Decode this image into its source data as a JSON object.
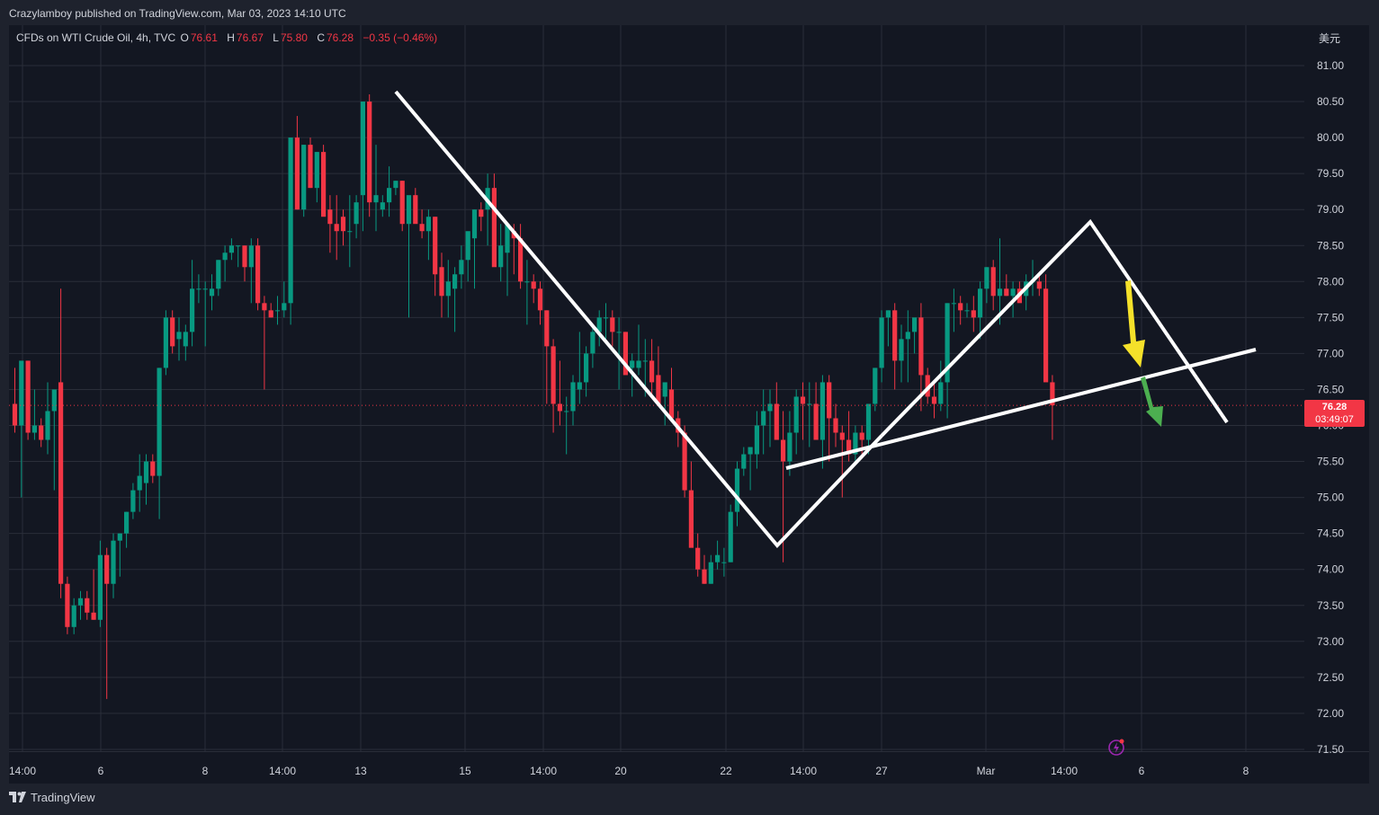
{
  "header": {
    "publisher": "Crazylamboy published on TradingView.com, Mar 03, 2023 14:10 UTC"
  },
  "legend": {
    "symbol": "CFDs on WTI Crude Oil, 4h, TVC",
    "o_label": "O",
    "o": "76.61",
    "h_label": "H",
    "h": "76.67",
    "l_label": "L",
    "l": "75.80",
    "c_label": "C",
    "c": "76.28",
    "change": "−0.35 (−0.46%)"
  },
  "currency": "美元",
  "price_badge": {
    "price": "76.28",
    "countdown": "03:49:07"
  },
  "footer": {
    "brand": "TradingView"
  },
  "colors": {
    "up": "#089981",
    "down": "#f23645",
    "bg": "#131722",
    "frame": "#1e222d",
    "grid": "#2a2e39",
    "annot": "#ffffff",
    "yellow_arrow": "#f5e12a",
    "green_arrow": "#4caf50"
  },
  "icons": [
    "tradingview-logo-icon",
    "lightning-icon"
  ],
  "chart_data": {
    "type": "candlestick",
    "title": "CFDs on WTI Crude Oil, 4h, TVC",
    "ylim": [
      71.35,
      81.45
    ],
    "y_ticks": [
      "81.00",
      "80.50",
      "80.00",
      "79.50",
      "79.00",
      "78.50",
      "78.00",
      "77.50",
      "77.00",
      "76.50",
      "76.00",
      "75.50",
      "75.00",
      "74.50",
      "74.00",
      "73.50",
      "73.00",
      "72.50",
      "72.00",
      "71.50"
    ],
    "x_ticks": [
      "14:00",
      "6",
      "8",
      "14:00",
      "13",
      "15",
      "14:00",
      "20",
      "22",
      "14:00",
      "27",
      "Mar",
      "14:00",
      "6",
      "8"
    ],
    "last_price": 76.28,
    "candles_ohlc": [
      [
        76.3,
        76.8,
        75.9,
        76.0
      ],
      [
        76.0,
        76.7,
        75.0,
        76.9
      ],
      [
        76.9,
        76.9,
        75.8,
        75.9
      ],
      [
        75.9,
        76.5,
        75.8,
        76.0
      ],
      [
        76.0,
        76.1,
        75.7,
        75.8
      ],
      [
        75.8,
        76.6,
        75.6,
        76.2
      ],
      [
        76.2,
        76.5,
        75.1,
        76.5
      ],
      [
        76.6,
        77.9,
        73.6,
        73.8
      ],
      [
        73.8,
        73.9,
        73.1,
        73.2
      ],
      [
        73.2,
        73.6,
        73.1,
        73.5
      ],
      [
        73.5,
        73.7,
        73.3,
        73.6
      ],
      [
        73.6,
        73.7,
        73.3,
        73.4
      ],
      [
        73.4,
        74.0,
        73.3,
        73.3
      ],
      [
        73.3,
        74.4,
        73.2,
        74.2
      ],
      [
        74.2,
        74.3,
        72.2,
        73.8
      ],
      [
        73.8,
        74.5,
        73.6,
        74.4
      ],
      [
        74.4,
        74.5,
        73.9,
        74.5
      ],
      [
        74.5,
        74.8,
        74.3,
        74.8
      ],
      [
        74.8,
        75.2,
        74.7,
        75.1
      ],
      [
        75.1,
        75.6,
        74.8,
        75.3
      ],
      [
        75.2,
        75.6,
        74.9,
        75.5
      ],
      [
        75.5,
        75.6,
        75.2,
        75.3
      ],
      [
        75.3,
        76.8,
        74.7,
        76.8
      ],
      [
        76.8,
        77.6,
        76.7,
        77.5
      ],
      [
        77.5,
        77.6,
        77.0,
        77.1
      ],
      [
        77.2,
        77.5,
        76.9,
        77.3
      ],
      [
        77.1,
        77.4,
        76.9,
        77.3
      ],
      [
        77.3,
        78.3,
        77.1,
        77.9
      ],
      [
        77.9,
        78.1,
        77.7,
        77.9
      ],
      [
        77.9,
        78.0,
        77.1,
        77.9
      ],
      [
        77.8,
        78.1,
        77.6,
        77.9
      ],
      [
        77.9,
        78.3,
        77.8,
        78.3
      ],
      [
        78.3,
        78.5,
        78.0,
        78.4
      ],
      [
        78.4,
        78.6,
        78.3,
        78.5
      ],
      [
        78.5,
        78.5,
        78.2,
        78.5
      ],
      [
        78.5,
        78.5,
        78.0,
        78.2
      ],
      [
        78.2,
        78.6,
        77.7,
        78.5
      ],
      [
        78.5,
        78.6,
        77.6,
        77.7
      ],
      [
        77.7,
        77.8,
        76.5,
        77.6
      ],
      [
        77.6,
        77.7,
        77.5,
        77.5
      ],
      [
        77.6,
        77.8,
        77.4,
        77.6
      ],
      [
        77.6,
        78.0,
        77.5,
        77.7
      ],
      [
        77.7,
        80.0,
        77.4,
        80.0
      ],
      [
        80.0,
        80.3,
        79.0,
        79.0
      ],
      [
        79.0,
        79.9,
        78.9,
        79.9
      ],
      [
        79.9,
        80.0,
        79.3,
        79.3
      ],
      [
        79.3,
        79.8,
        79.1,
        79.8
      ],
      [
        79.8,
        79.9,
        79.0,
        78.9
      ],
      [
        79.0,
        79.2,
        78.4,
        78.8
      ],
      [
        78.8,
        79.2,
        78.3,
        78.7
      ],
      [
        78.9,
        79.0,
        78.5,
        78.7
      ],
      [
        78.7,
        79.2,
        78.2,
        78.7
      ],
      [
        78.8,
        79.2,
        78.6,
        79.1
      ],
      [
        79.2,
        80.5,
        78.7,
        80.5
      ],
      [
        80.5,
        80.6,
        78.9,
        79.1
      ],
      [
        79.1,
        79.9,
        78.7,
        79.2
      ],
      [
        79.0,
        79.2,
        78.9,
        79.1
      ],
      [
        79.1,
        79.6,
        78.9,
        79.3
      ],
      [
        79.3,
        79.4,
        79.2,
        79.4
      ],
      [
        79.4,
        79.4,
        78.7,
        78.8
      ],
      [
        78.8,
        79.1,
        77.5,
        79.2
      ],
      [
        79.2,
        79.3,
        78.9,
        78.8
      ],
      [
        78.8,
        79.0,
        78.6,
        78.7
      ],
      [
        78.7,
        79.0,
        78.3,
        78.9
      ],
      [
        78.9,
        78.9,
        77.8,
        78.1
      ],
      [
        78.2,
        78.4,
        77.5,
        77.8
      ],
      [
        77.8,
        78.3,
        77.5,
        78.0
      ],
      [
        77.9,
        78.2,
        77.3,
        78.1
      ],
      [
        78.1,
        78.5,
        77.9,
        78.3
      ],
      [
        78.3,
        78.5,
        78.0,
        78.7
      ],
      [
        78.6,
        79.0,
        77.9,
        79.0
      ],
      [
        79.0,
        79.1,
        78.7,
        78.9
      ],
      [
        79.0,
        79.5,
        78.5,
        79.3
      ],
      [
        79.3,
        79.5,
        78.4,
        78.2
      ],
      [
        78.2,
        78.8,
        78.0,
        78.5
      ],
      [
        78.4,
        78.8,
        77.8,
        78.8
      ],
      [
        78.7,
        78.8,
        78.1,
        78.6
      ],
      [
        78.6,
        78.8,
        77.9,
        78.0
      ],
      [
        78.0,
        78.3,
        77.4,
        78.0
      ],
      [
        78.0,
        78.1,
        77.7,
        77.9
      ],
      [
        77.9,
        78.0,
        77.4,
        77.6
      ],
      [
        77.6,
        77.6,
        76.3,
        77.1
      ],
      [
        77.1,
        77.2,
        75.9,
        76.3
      ],
      [
        76.3,
        76.9,
        76.0,
        76.2
      ],
      [
        76.2,
        76.4,
        75.6,
        76.2
      ],
      [
        76.2,
        76.7,
        76.0,
        76.6
      ],
      [
        76.5,
        77.3,
        76.3,
        76.6
      ],
      [
        76.6,
        77.1,
        76.4,
        77.0
      ],
      [
        77.0,
        77.4,
        76.8,
        77.3
      ],
      [
        77.3,
        77.6,
        77.1,
        77.5
      ],
      [
        77.5,
        77.7,
        77.2,
        77.5
      ],
      [
        77.5,
        77.6,
        77.1,
        77.3
      ],
      [
        77.3,
        77.5,
        76.5,
        77.3
      ],
      [
        77.3,
        77.3,
        76.8,
        76.7
      ],
      [
        76.8,
        77.0,
        76.4,
        76.9
      ],
      [
        76.8,
        77.4,
        76.7,
        76.9
      ],
      [
        76.9,
        77.2,
        76.4,
        76.9
      ],
      [
        76.9,
        77.2,
        76.4,
        76.6
      ],
      [
        76.7,
        77.1,
        76.4,
        76.3
      ],
      [
        76.4,
        76.5,
        76.0,
        76.6
      ],
      [
        76.5,
        76.8,
        76.2,
        76.1
      ],
      [
        76.1,
        76.2,
        75.7,
        75.9
      ],
      [
        75.9,
        76.0,
        75.0,
        75.1
      ],
      [
        75.1,
        75.5,
        75.0,
        74.3
      ],
      [
        74.3,
        74.5,
        73.9,
        74.0
      ],
      [
        74.0,
        74.2,
        73.8,
        73.8
      ],
      [
        73.8,
        74.2,
        73.8,
        74.1
      ],
      [
        74.1,
        74.4,
        74.0,
        74.2
      ],
      [
        74.1,
        74.3,
        73.9,
        74.1
      ],
      [
        74.1,
        74.9,
        74.1,
        74.8
      ],
      [
        74.8,
        75.5,
        74.6,
        75.4
      ],
      [
        75.4,
        75.7,
        75.3,
        75.6
      ],
      [
        75.6,
        75.7,
        75.1,
        75.7
      ],
      [
        75.6,
        76.2,
        75.4,
        76.0
      ],
      [
        76.0,
        76.5,
        75.6,
        76.2
      ],
      [
        76.2,
        76.5,
        75.7,
        76.3
      ],
      [
        76.3,
        76.6,
        75.8,
        75.8
      ],
      [
        75.8,
        76.2,
        74.1,
        75.5
      ],
      [
        75.5,
        76.2,
        75.3,
        75.9
      ],
      [
        75.9,
        76.5,
        75.6,
        76.4
      ],
      [
        76.4,
        76.6,
        75.8,
        76.3
      ],
      [
        76.3,
        76.6,
        75.7,
        76.3
      ],
      [
        76.3,
        76.6,
        75.9,
        75.8
      ],
      [
        75.8,
        76.7,
        75.4,
        76.6
      ],
      [
        76.6,
        76.7,
        75.5,
        76.1
      ],
      [
        76.1,
        76.3,
        75.7,
        75.9
      ],
      [
        75.9,
        76.0,
        75.0,
        75.8
      ],
      [
        75.8,
        76.2,
        75.5,
        75.6
      ],
      [
        75.6,
        76.0,
        75.5,
        75.9
      ],
      [
        75.9,
        76.0,
        75.6,
        75.8
      ],
      [
        75.8,
        76.0,
        75.6,
        76.3
      ],
      [
        76.3,
        76.8,
        76.2,
        76.8
      ],
      [
        76.8,
        77.6,
        76.6,
        77.5
      ],
      [
        77.5,
        77.6,
        77.1,
        77.6
      ],
      [
        77.6,
        77.7,
        76.5,
        76.9
      ],
      [
        76.9,
        77.4,
        76.6,
        77.2
      ],
      [
        77.2,
        77.6,
        76.6,
        77.3
      ],
      [
        77.3,
        77.3,
        77.0,
        77.5
      ],
      [
        77.5,
        77.7,
        76.2,
        76.7
      ],
      [
        76.7,
        76.8,
        76.3,
        76.4
      ],
      [
        76.4,
        76.6,
        76.1,
        76.3
      ],
      [
        76.3,
        76.9,
        76.2,
        76.6
      ],
      [
        76.6,
        77.7,
        76.1,
        77.7
      ],
      [
        77.7,
        77.9,
        77.3,
        77.7
      ],
      [
        77.7,
        77.8,
        77.4,
        77.6
      ],
      [
        77.6,
        77.7,
        77.5,
        77.6
      ],
      [
        77.6,
        77.8,
        77.3,
        77.5
      ],
      [
        77.5,
        78.0,
        77.2,
        77.9
      ],
      [
        77.9,
        78.2,
        77.7,
        78.2
      ],
      [
        78.2,
        78.3,
        77.6,
        77.8
      ],
      [
        77.8,
        78.6,
        77.4,
        77.9
      ],
      [
        77.9,
        78.1,
        77.8,
        77.8
      ],
      [
        77.8,
        78.0,
        77.5,
        77.9
      ],
      [
        77.9,
        78.0,
        77.8,
        77.7
      ],
      [
        77.8,
        78.1,
        77.6,
        78.0
      ],
      [
        78.0,
        78.3,
        77.8,
        78.0
      ],
      [
        78.0,
        78.1,
        77.8,
        77.9
      ],
      [
        77.9,
        78.1,
        77.7,
        76.6
      ],
      [
        76.6,
        76.7,
        75.8,
        76.28
      ]
    ]
  }
}
